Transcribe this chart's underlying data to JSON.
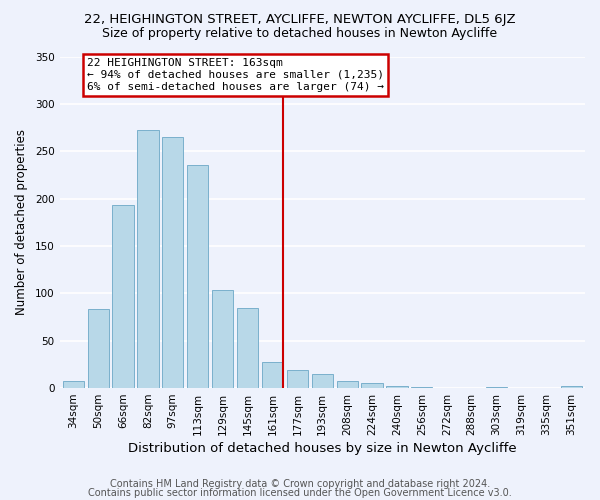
{
  "title_line1": "22, HEIGHINGTON STREET, AYCLIFFE, NEWTON AYCLIFFE, DL5 6JZ",
  "title_line2": "Size of property relative to detached houses in Newton Aycliffe",
  "xlabel": "Distribution of detached houses by size in Newton Aycliffe",
  "ylabel": "Number of detached properties",
  "bar_labels": [
    "34sqm",
    "50sqm",
    "66sqm",
    "82sqm",
    "97sqm",
    "113sqm",
    "129sqm",
    "145sqm",
    "161sqm",
    "177sqm",
    "193sqm",
    "208sqm",
    "224sqm",
    "240sqm",
    "256sqm",
    "272sqm",
    "288sqm",
    "303sqm",
    "319sqm",
    "335sqm",
    "351sqm"
  ],
  "bar_heights": [
    7,
    83,
    193,
    272,
    265,
    235,
    104,
    85,
    28,
    19,
    15,
    7,
    5,
    2,
    1,
    0,
    0,
    1,
    0,
    0,
    2
  ],
  "bar_color": "#b8d8e8",
  "bar_edge_color": "#7ab0cc",
  "vline_color": "#cc0000",
  "annotation_title": "22 HEIGHINGTON STREET: 163sqm",
  "annotation_line1": "← 94% of detached houses are smaller (1,235)",
  "annotation_line2": "6% of semi-detached houses are larger (74) →",
  "annotation_box_color": "#ffffff",
  "annotation_box_edge": "#cc0000",
  "ylim": [
    0,
    350
  ],
  "yticks": [
    0,
    50,
    100,
    150,
    200,
    250,
    300,
    350
  ],
  "footer_line1": "Contains HM Land Registry data © Crown copyright and database right 2024.",
  "footer_line2": "Contains public sector information licensed under the Open Government Licence v3.0.",
  "background_color": "#eef2fc",
  "grid_color": "#ffffff",
  "title1_fontsize": 9.5,
  "title2_fontsize": 9,
  "xlabel_fontsize": 9.5,
  "ylabel_fontsize": 8.5,
  "footer_fontsize": 7,
  "tick_fontsize": 7.5,
  "annot_fontsize": 8
}
